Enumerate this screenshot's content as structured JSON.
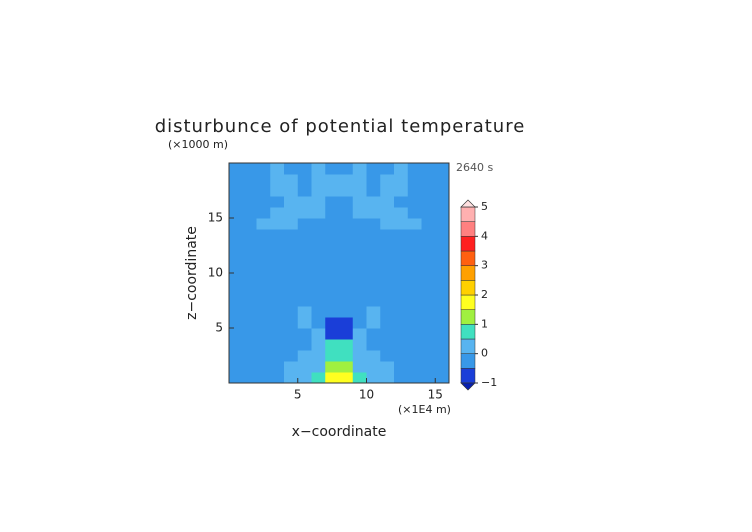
{
  "chart_data": {
    "type": "contour",
    "title": "disturbunce of potential temperature",
    "ylabel": "z−coordinate",
    "xlabel": "x−coordinate",
    "yunit": "(×1000 m)",
    "xunit": "(×1E4 m)",
    "annotation": "2640 s",
    "xlim": [
      0,
      16
    ],
    "ylim": [
      0,
      20
    ],
    "xticks": [
      5,
      10,
      15
    ],
    "yticks": [
      5,
      10,
      15
    ],
    "x": [
      0.5,
      1.5,
      2.5,
      3.5,
      4.5,
      5.5,
      6.5,
      7.5,
      8.5,
      9.5,
      10.5,
      11.5,
      12.5,
      13.5,
      14.5,
      15.5
    ],
    "z": [
      0.5,
      1.5,
      2.5,
      3.5,
      4.5,
      5.5,
      6.5,
      7.5,
      8.5,
      9.5,
      10.5,
      11.5,
      12.5,
      13.5,
      14.5,
      15.5,
      16.5,
      17.5,
      18.5,
      19.5
    ],
    "values": [
      [
        -0.2,
        -0.2,
        -0.2,
        -0.2,
        0.2,
        0.2,
        0.8,
        1.8,
        1.8,
        0.8,
        0.2,
        0.2,
        -0.2,
        -0.2,
        -0.2,
        -0.2
      ],
      [
        -0.2,
        -0.2,
        -0.2,
        -0.2,
        0.2,
        0.2,
        0.2,
        1.2,
        1.2,
        0.2,
        0.2,
        0.2,
        -0.2,
        -0.2,
        -0.2,
        -0.2
      ],
      [
        -0.2,
        -0.2,
        -0.2,
        -0.2,
        -0.2,
        0.2,
        0.2,
        0.7,
        0.7,
        0.2,
        0.2,
        -0.2,
        -0.2,
        -0.2,
        -0.2,
        -0.2
      ],
      [
        -0.2,
        -0.2,
        -0.2,
        -0.2,
        -0.2,
        -0.2,
        0.2,
        0.6,
        0.6,
        0.2,
        -0.2,
        -0.2,
        -0.2,
        -0.2,
        -0.2,
        -0.2
      ],
      [
        -0.2,
        -0.2,
        -0.2,
        -0.2,
        -0.2,
        -0.2,
        0.2,
        -0.6,
        -0.6,
        0.2,
        -0.2,
        -0.2,
        -0.2,
        -0.2,
        -0.2,
        -0.2
      ],
      [
        -0.2,
        -0.2,
        -0.2,
        -0.2,
        -0.2,
        0.2,
        -0.2,
        -0.6,
        -0.6,
        -0.2,
        0.2,
        -0.2,
        -0.2,
        -0.2,
        -0.2,
        -0.2
      ],
      [
        -0.2,
        -0.2,
        -0.2,
        -0.2,
        -0.2,
        0.2,
        -0.2,
        -0.2,
        -0.2,
        -0.2,
        0.2,
        -0.2,
        -0.2,
        -0.2,
        -0.2,
        -0.2
      ],
      [
        -0.2,
        -0.2,
        -0.2,
        -0.2,
        -0.2,
        -0.2,
        -0.2,
        -0.2,
        -0.2,
        -0.2,
        -0.2,
        -0.2,
        -0.2,
        -0.2,
        -0.2,
        -0.2
      ],
      [
        -0.2,
        -0.2,
        -0.2,
        -0.2,
        -0.2,
        -0.2,
        -0.2,
        -0.2,
        -0.2,
        -0.2,
        -0.2,
        -0.2,
        -0.2,
        -0.2,
        -0.2,
        -0.2
      ],
      [
        -0.2,
        -0.2,
        -0.2,
        -0.2,
        -0.2,
        -0.2,
        -0.2,
        -0.2,
        -0.2,
        -0.2,
        -0.2,
        -0.2,
        -0.2,
        -0.2,
        -0.2,
        -0.2
      ],
      [
        -0.2,
        -0.2,
        -0.2,
        -0.2,
        -0.2,
        -0.2,
        -0.2,
        -0.2,
        -0.2,
        -0.2,
        -0.2,
        -0.2,
        -0.2,
        -0.2,
        -0.2,
        -0.2
      ],
      [
        -0.2,
        -0.2,
        -0.2,
        -0.2,
        -0.2,
        -0.2,
        -0.2,
        -0.2,
        -0.2,
        -0.2,
        -0.2,
        -0.2,
        -0.2,
        -0.2,
        -0.2,
        -0.2
      ],
      [
        -0.2,
        -0.2,
        -0.2,
        -0.2,
        -0.2,
        -0.2,
        -0.2,
        -0.2,
        -0.2,
        -0.2,
        -0.2,
        -0.2,
        -0.2,
        -0.2,
        -0.2,
        -0.2
      ],
      [
        -0.2,
        -0.2,
        -0.2,
        -0.2,
        -0.2,
        -0.2,
        -0.2,
        -0.2,
        -0.2,
        -0.2,
        -0.2,
        -0.2,
        -0.2,
        -0.2,
        -0.2,
        -0.2
      ],
      [
        -0.2,
        -0.2,
        0.2,
        0.2,
        0.2,
        -0.2,
        -0.2,
        -0.2,
        -0.2,
        -0.2,
        -0.2,
        0.2,
        0.2,
        0.2,
        -0.2,
        -0.2
      ],
      [
        -0.2,
        -0.2,
        -0.2,
        0.2,
        0.2,
        0.2,
        0.2,
        -0.2,
        -0.2,
        0.2,
        0.2,
        0.2,
        0.2,
        -0.2,
        -0.2,
        -0.2
      ],
      [
        -0.2,
        -0.2,
        -0.2,
        -0.2,
        0.2,
        0.2,
        0.2,
        -0.2,
        -0.2,
        0.2,
        0.2,
        0.2,
        -0.2,
        -0.2,
        -0.2,
        -0.2
      ],
      [
        -0.2,
        -0.2,
        -0.2,
        0.2,
        0.2,
        -0.2,
        0.2,
        0.2,
        0.2,
        0.2,
        -0.2,
        0.2,
        0.2,
        -0.2,
        -0.2,
        -0.2
      ],
      [
        -0.2,
        -0.2,
        -0.2,
        0.2,
        0.2,
        -0.2,
        0.2,
        0.2,
        0.2,
        0.2,
        -0.2,
        0.2,
        0.2,
        -0.2,
        -0.2,
        -0.2
      ],
      [
        -0.2,
        -0.2,
        -0.2,
        0.2,
        -0.2,
        -0.2,
        0.2,
        -0.2,
        -0.2,
        0.2,
        -0.2,
        -0.2,
        0.2,
        -0.2,
        -0.2,
        -0.2
      ]
    ],
    "levels": [
      -1,
      -0.5,
      0,
      0.5,
      1,
      1.5,
      2,
      2.5,
      3,
      3.5,
      4,
      4.5,
      5
    ],
    "colors": [
      "#1a3ed8",
      "#3898e8",
      "#58b4f0",
      "#40e0c0",
      "#a0f040",
      "#ffff20",
      "#ffd000",
      "#ffa000",
      "#ff6010",
      "#ff2020",
      "#ff8080",
      "#ffb0b0"
    ],
    "under_color": "#0820b0",
    "over_color": "#ffe0e0",
    "cbar_ticks": [
      {
        "value": -1,
        "label": "−1"
      },
      0,
      1,
      2,
      3,
      4,
      5
    ]
  }
}
